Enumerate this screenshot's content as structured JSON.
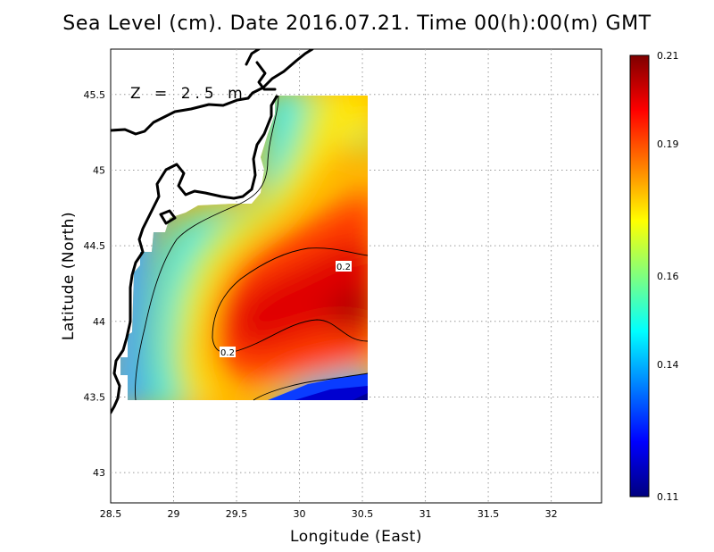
{
  "title": "Sea Level (cm). Date 2016.07.21. Time 00(h):00(m) GMT",
  "depth_label": "Z = 2.5 m",
  "x_axis": {
    "label": "Longitude (East)",
    "ticks": [
      28.5,
      29,
      29.5,
      30,
      30.5,
      31,
      31.5,
      32
    ],
    "tick_labels": [
      "28.5",
      "29",
      "29.5",
      "30",
      "30.5",
      "31",
      "31.5",
      "32"
    ],
    "range": [
      28.5,
      32.4
    ]
  },
  "y_axis": {
    "label": "Latitude (North)",
    "ticks": [
      43,
      43.5,
      44,
      44.5,
      45,
      45.5
    ],
    "tick_labels": [
      "43",
      "43.5",
      "44",
      "44.5",
      "45",
      "45.5"
    ],
    "range": [
      42.8,
      45.8
    ]
  },
  "colorbar": {
    "min": 0.11,
    "max": 0.21,
    "tick_labels": [
      "0.21",
      "0.19",
      "0.16",
      "0.14",
      "0.11"
    ],
    "colors": [
      "#00007f",
      "#0000ff",
      "#007fff",
      "#00ffff",
      "#7fff7f",
      "#ffff00",
      "#ff7f00",
      "#ff0000",
      "#7f0000"
    ]
  },
  "contour_labels": [
    "0.2",
    "0.2"
  ],
  "chart_data": {
    "type": "heatmap",
    "title": "Sea Level (cm). Date 2016.07.21. Time 00(h):00(m) GMT",
    "xlabel": "Longitude (East)",
    "ylabel": "Latitude (North)",
    "xlim": [
      28.5,
      32.4
    ],
    "ylim": [
      42.8,
      45.8
    ],
    "value_range": [
      0.11,
      0.21
    ],
    "grid": true,
    "legend": "colorbar right",
    "data_extent": {
      "lon": [
        28.63,
        30.55
      ],
      "lat": [
        43.48,
        45.5
      ]
    },
    "field_max": {
      "lon": 30.45,
      "lat": 44.1,
      "value": 0.208
    },
    "contour_levels": [
      0.2,
      0.14
    ]
  }
}
